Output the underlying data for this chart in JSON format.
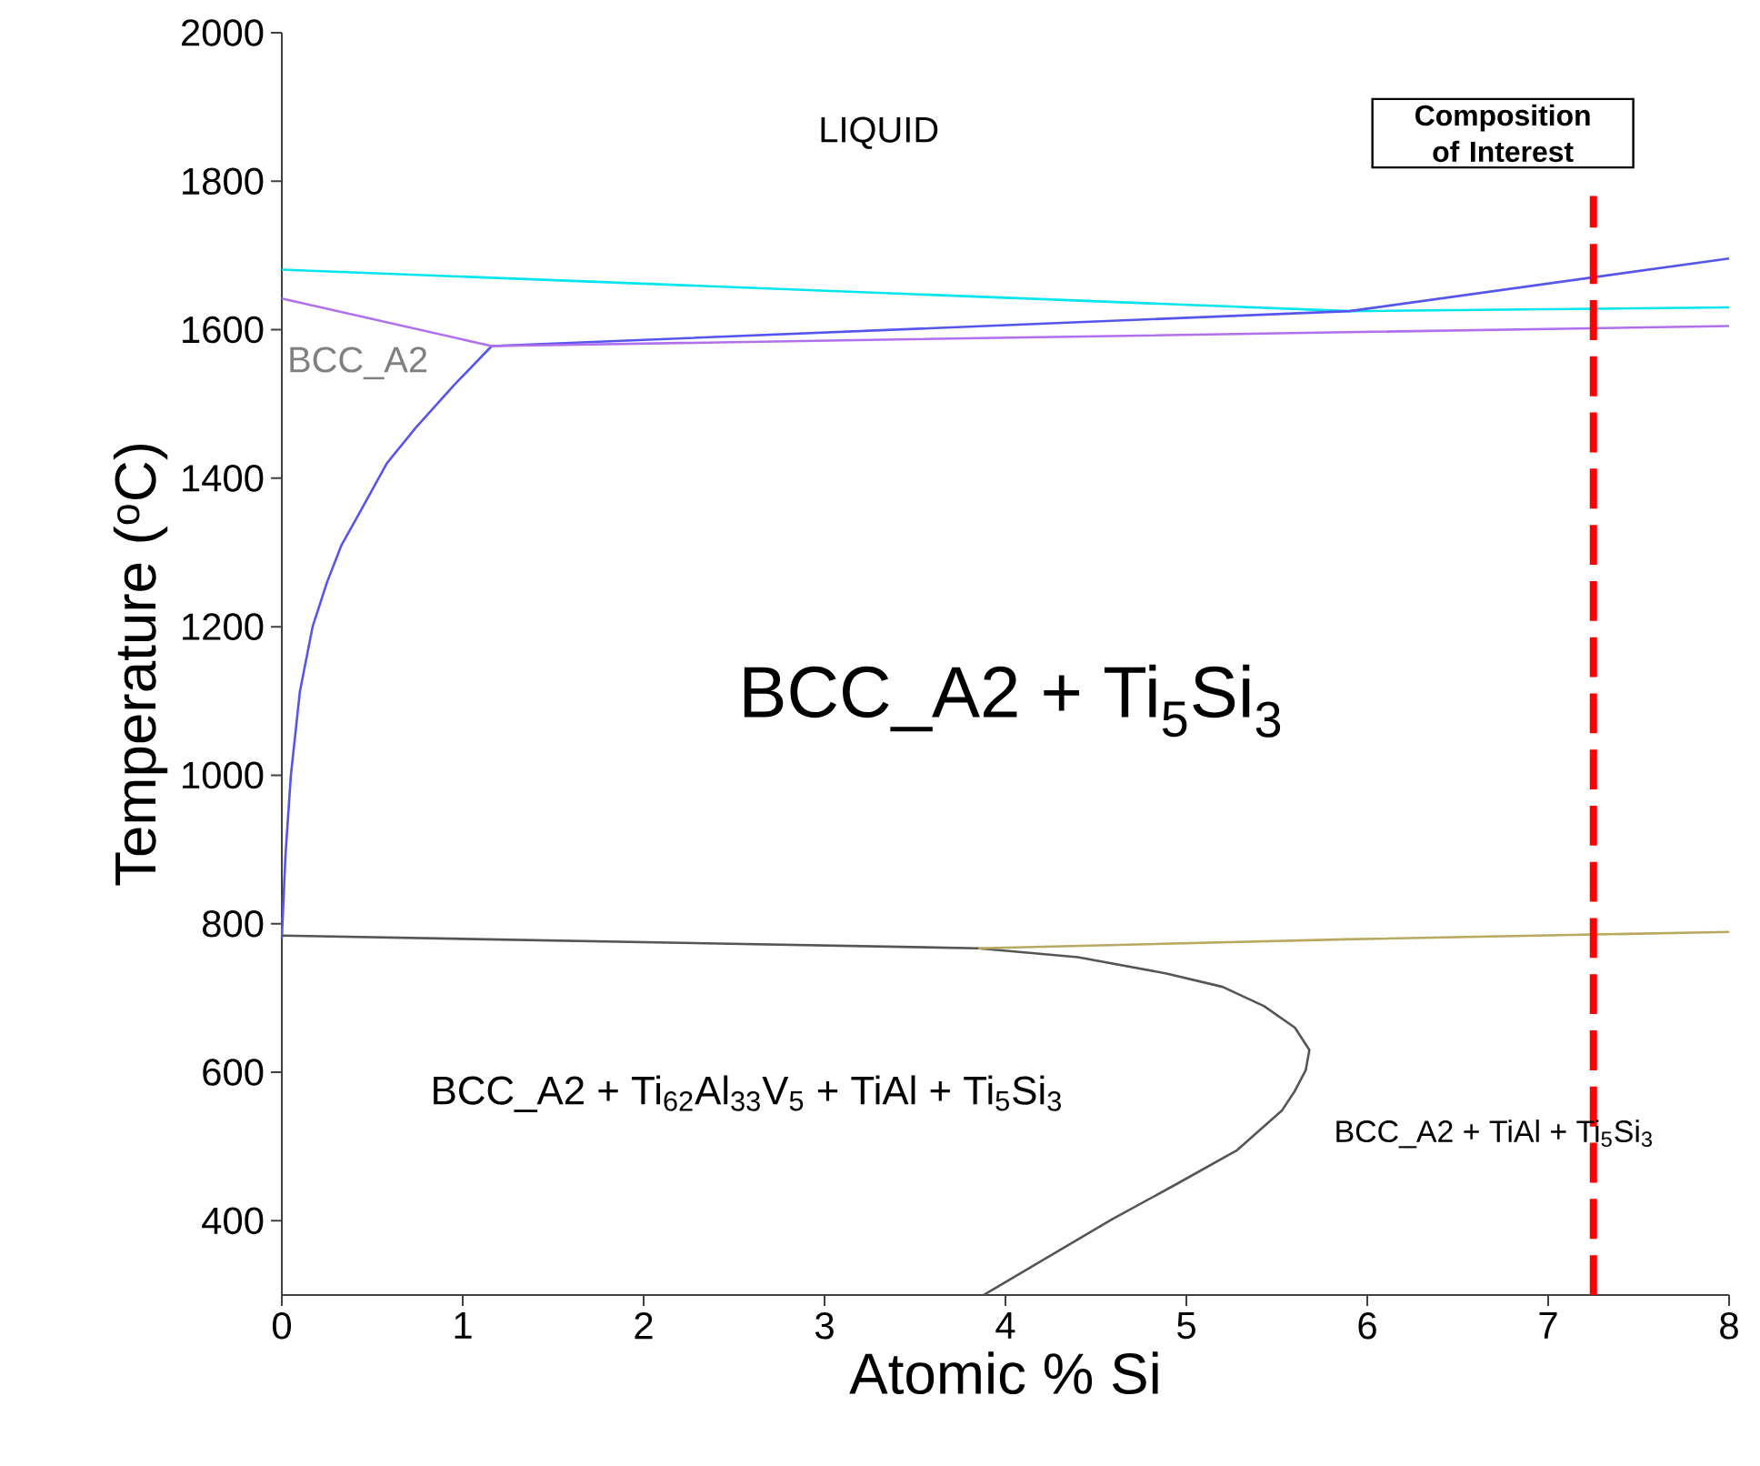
{
  "chart_data": {
    "type": "line",
    "xlabel": "Atomic % Si",
    "ylabel": "Temperature ($^{o}$C)",
    "xlim": [
      0,
      8
    ],
    "ylim": [
      300,
      2000
    ],
    "xticks": [
      0,
      1,
      2,
      3,
      4,
      5,
      6,
      7,
      8
    ],
    "yticks": [
      400,
      600,
      800,
      1000,
      1200,
      1400,
      1600,
      1800,
      2000
    ],
    "grid": false,
    "marker": "none",
    "line_style": "solid",
    "series": [
      {
        "color": "#00e5ee",
        "x": [
          0,
          5.9,
          8
        ],
        "values": [
          1681,
          1625,
          1630
        ]
      },
      {
        "color": "#5555ee",
        "x": [
          0,
          0.02,
          0.05,
          0.1,
          0.17,
          0.25,
          0.33,
          0.44,
          0.58,
          0.74,
          0.95,
          1.16,
          5.9,
          8
        ],
        "values": [
          780,
          892,
          1000,
          1113,
          1200,
          1260,
          1310,
          1358,
          1420,
          1468,
          1525,
          1578,
          1625,
          1696
        ]
      },
      {
        "color": "#b070ee",
        "x": [
          0,
          1.16,
          8
        ],
        "values": [
          1642,
          1578,
          1605
        ]
      },
      {
        "color": "#555555",
        "x": [
          0,
          3.85,
          4.4,
          4.89,
          5.2,
          5.43,
          5.6,
          5.68,
          5.66,
          5.6,
          5.53,
          5.28,
          4.95,
          4.59,
          3.88
        ],
        "values": [
          784,
          767,
          755,
          733,
          715,
          689,
          660,
          630,
          603,
          575,
          549,
          495,
          450,
          402,
          300
        ]
      },
      {
        "color": "#b8a860",
        "x": [
          3.85,
          5.88,
          8
        ],
        "values": [
          767,
          779,
          789
        ]
      }
    ],
    "ref_lines": [
      {
        "axis": "x",
        "value": 7.25,
        "label": "Composition of Interest",
        "color": "#ff0000",
        "line_style": "dashed"
      }
    ],
    "annotations": [
      "LIQUID",
      "BCC_A2",
      "BCC_A2 + Ti$_{5}$Si$_{3}$",
      "BCC_A2 + Ti$_{62}$Al$_{33}$V$_{5}$ + TiAl + Ti$_{5}$Si$_{3}$",
      "BCC_A2 + TiAl + Ti$_{5}$Si$_{3}$"
    ]
  }
}
